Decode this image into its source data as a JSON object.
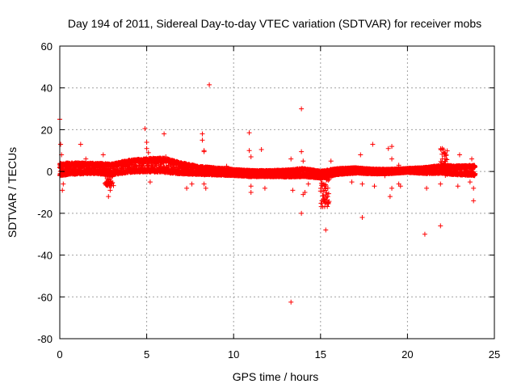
{
  "chart_data": {
    "type": "scatter",
    "title": "Day 194 of 2011, Sidereal Day-to-day VTEC variation (SDTVAR) for receiver mobs",
    "xlabel": "GPS time / hours",
    "ylabel": "SDTVAR / TECUs",
    "xlim": [
      0,
      25
    ],
    "ylim": [
      -80,
      60
    ],
    "xticks": [
      "0",
      "5",
      "10",
      "15",
      "20",
      "25"
    ],
    "yticks": [
      "60",
      "40",
      "20",
      "0",
      "-20",
      "-40",
      "-60",
      "-80"
    ],
    "xtick_values": [
      0,
      5,
      10,
      15,
      20,
      25
    ],
    "ytick_values": [
      60,
      40,
      20,
      0,
      -20,
      -40,
      -60,
      -80
    ],
    "grid": true,
    "marker": "+",
    "color": "#ff0000",
    "band": {
      "x_start": 0.0,
      "x_end": 23.9,
      "center": [
        [
          0.0,
          1.0
        ],
        [
          1.0,
          1.5
        ],
        [
          2.0,
          1.5
        ],
        [
          3.0,
          1.0
        ],
        [
          4.0,
          2.5
        ],
        [
          5.0,
          3.0
        ],
        [
          6.0,
          3.0
        ],
        [
          7.0,
          1.5
        ],
        [
          8.0,
          0.5
        ],
        [
          9.0,
          0.0
        ],
        [
          10.0,
          -0.5
        ],
        [
          11.0,
          -1.0
        ],
        [
          12.0,
          -1.0
        ],
        [
          13.0,
          -1.0
        ],
        [
          14.0,
          -0.5
        ],
        [
          15.0,
          -1.5
        ],
        [
          16.0,
          0.0
        ],
        [
          17.0,
          0.5
        ],
        [
          18.0,
          0.0
        ],
        [
          19.0,
          0.0
        ],
        [
          20.0,
          0.5
        ],
        [
          21.0,
          0.5
        ],
        [
          22.0,
          1.0
        ],
        [
          23.0,
          0.5
        ],
        [
          23.9,
          0.5
        ]
      ],
      "halfwidth": [
        [
          0.0,
          3.0
        ],
        [
          2.0,
          2.5
        ],
        [
          4.0,
          3.0
        ],
        [
          6.0,
          3.5
        ],
        [
          8.0,
          2.0
        ],
        [
          10.0,
          1.5
        ],
        [
          12.0,
          1.5
        ],
        [
          14.0,
          2.0
        ],
        [
          16.0,
          1.5
        ],
        [
          18.0,
          1.2
        ],
        [
          20.0,
          1.0
        ],
        [
          22.0,
          2.0
        ],
        [
          23.9,
          2.5
        ]
      ]
    },
    "features": [
      {
        "name": "dip-2.8",
        "x_start": 2.6,
        "x_end": 3.1,
        "y_min": -7,
        "y_max": 0
      },
      {
        "name": "rise-22",
        "x_start": 21.9,
        "x_end": 22.3,
        "y_min": -2,
        "y_max": 11
      },
      {
        "name": "dip-15.2",
        "x_start": 15.0,
        "x_end": 15.5,
        "y_min": -17,
        "y_max": -2
      }
    ],
    "outliers": [
      [
        0.0,
        25
      ],
      [
        0.05,
        13
      ],
      [
        0.1,
        8
      ],
      [
        0.15,
        -9
      ],
      [
        0.2,
        -6
      ],
      [
        1.2,
        13
      ],
      [
        1.5,
        6
      ],
      [
        2.5,
        8
      ],
      [
        2.8,
        -12
      ],
      [
        2.9,
        -9
      ],
      [
        4.9,
        20.5
      ],
      [
        5.0,
        14
      ],
      [
        5.0,
        11
      ],
      [
        5.1,
        9
      ],
      [
        5.2,
        -5
      ],
      [
        6.0,
        18
      ],
      [
        6.1,
        7
      ],
      [
        7.3,
        -8
      ],
      [
        7.6,
        -6
      ],
      [
        8.2,
        18
      ],
      [
        8.2,
        15
      ],
      [
        8.3,
        10
      ],
      [
        8.3,
        9.5
      ],
      [
        8.3,
        -6
      ],
      [
        8.4,
        -8
      ],
      [
        8.6,
        41.5
      ],
      [
        9.6,
        2.5
      ],
      [
        10.9,
        18.5
      ],
      [
        10.9,
        10
      ],
      [
        11.0,
        7
      ],
      [
        11.0,
        -7
      ],
      [
        11.0,
        -10
      ],
      [
        11.6,
        10.5
      ],
      [
        11.8,
        -8
      ],
      [
        13.3,
        -62.5
      ],
      [
        13.3,
        6
      ],
      [
        13.4,
        -9
      ],
      [
        13.9,
        30
      ],
      [
        13.9,
        9.5
      ],
      [
        14.0,
        5
      ],
      [
        13.9,
        -20
      ],
      [
        14.0,
        -11
      ],
      [
        14.1,
        -10
      ],
      [
        14.3,
        -6
      ],
      [
        15.3,
        -28
      ],
      [
        15.6,
        5
      ],
      [
        16.8,
        -5
      ],
      [
        17.3,
        8
      ],
      [
        17.4,
        -22
      ],
      [
        17.4,
        -6
      ],
      [
        18.0,
        13
      ],
      [
        18.1,
        -7
      ],
      [
        18.7,
        -2
      ],
      [
        18.9,
        11
      ],
      [
        19.1,
        12
      ],
      [
        19.1,
        6
      ],
      [
        19.0,
        -12
      ],
      [
        19.1,
        -8
      ],
      [
        19.5,
        -6
      ],
      [
        19.5,
        3
      ],
      [
        19.6,
        -7
      ],
      [
        21.0,
        -30
      ],
      [
        21.1,
        -8
      ],
      [
        21.9,
        -26
      ],
      [
        21.9,
        -6
      ],
      [
        22.0,
        11
      ],
      [
        22.9,
        -7
      ],
      [
        23.0,
        8
      ],
      [
        23.6,
        -5
      ],
      [
        23.8,
        -14
      ],
      [
        23.8,
        -8
      ],
      [
        23.7,
        6
      ]
    ]
  }
}
